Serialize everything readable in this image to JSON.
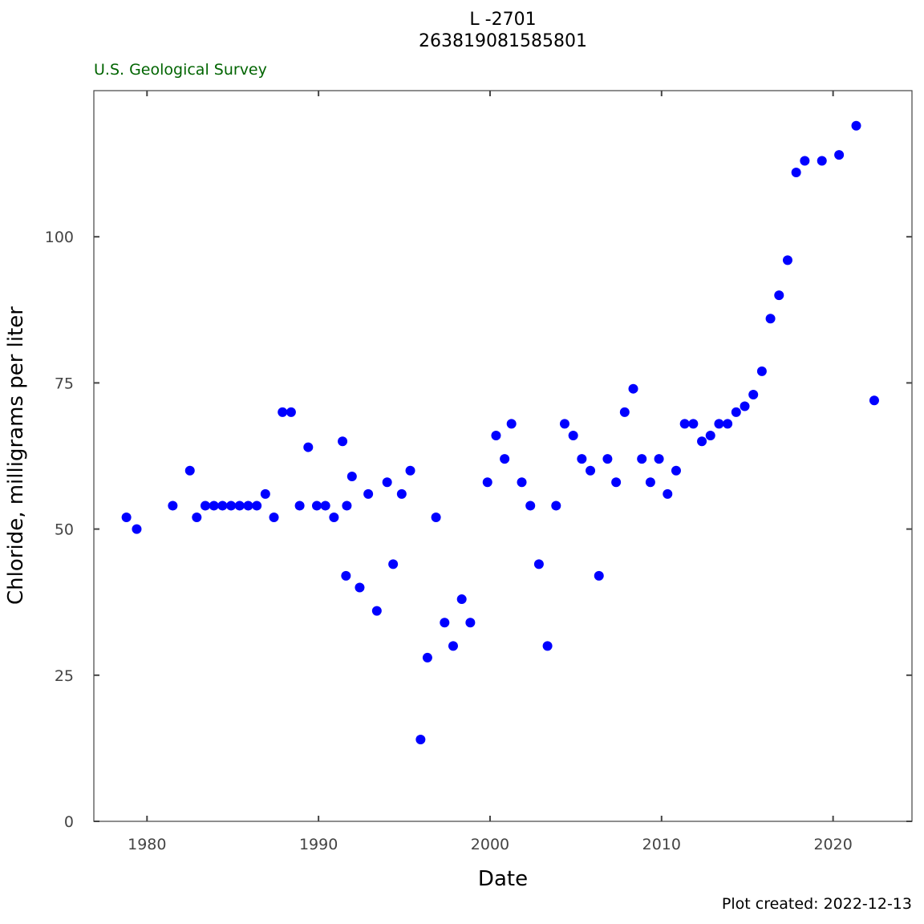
{
  "header": {
    "title_line1": "L -2701",
    "title_line2": "263819081585801",
    "agency": "U.S. Geological Survey",
    "agency_color": "#006400"
  },
  "footer": {
    "plot_created": "Plot created: 2022-12-13"
  },
  "chart_data": {
    "type": "scatter",
    "xlabel": "Date",
    "ylabel": "Chloride, milligrams per liter",
    "xlim": [
      1976.9,
      2024.6
    ],
    "ylim": [
      0,
      125
    ],
    "x_ticks": [
      1980,
      1990,
      2000,
      2010,
      2020
    ],
    "y_ticks": [
      0,
      25,
      50,
      75,
      100
    ],
    "x_tick_labels": [
      "1980",
      "1990",
      "2000",
      "2010",
      "2020"
    ],
    "y_tick_labels": [
      "0",
      "25",
      "50",
      "75",
      "100"
    ],
    "grid": false,
    "marker_color": "#0000ff",
    "series": [
      {
        "x": [
          1978.8,
          1979.4,
          1981.5,
          1982.5,
          1982.9,
          1983.4,
          1983.9,
          1984.4,
          1984.9,
          1985.4,
          1985.9,
          1986.4,
          1986.9,
          1987.4,
          1987.9,
          1988.4,
          1988.9,
          1989.4,
          1989.9,
          1990.4,
          1990.9,
          1991.4,
          1991.6,
          1991.65,
          1991.95,
          1992.4,
          1992.9,
          1993.4,
          1994.0,
          1994.35,
          1994.85,
          1995.35,
          1995.95,
          1996.35,
          1996.85,
          1997.35,
          1997.85,
          1998.35,
          1998.85,
          1999.85,
          2000.35,
          2000.85,
          2001.25,
          2001.85,
          2002.35,
          2002.85,
          2003.35,
          2003.85,
          2004.35,
          2004.85,
          2005.35,
          2005.85,
          2006.35,
          2006.85,
          2007.35,
          2007.85,
          2008.35,
          2008.85,
          2009.35,
          2009.85,
          2010.35,
          2010.85,
          2011.35,
          2011.85,
          2012.35,
          2012.85,
          2013.35,
          2013.85,
          2014.35,
          2014.85,
          2015.35,
          2015.85,
          2016.35,
          2016.85,
          2017.35,
          2017.85,
          2018.35,
          2019.35,
          2020.35,
          2021.35,
          2022.4
        ],
        "y": [
          52,
          50,
          54,
          60,
          52,
          54,
          54,
          54,
          54,
          54,
          54,
          54,
          56,
          52,
          70,
          70,
          54,
          64,
          54,
          54,
          52,
          65,
          42,
          54,
          59,
          40,
          56,
          36,
          58,
          44,
          56,
          60,
          14,
          28,
          52,
          34,
          30,
          38,
          34,
          58,
          66,
          62,
          68,
          58,
          54,
          44,
          30,
          54,
          68,
          66,
          62,
          60,
          42,
          62,
          58,
          70,
          74,
          62,
          58,
          62,
          56,
          60,
          68,
          68,
          65,
          66,
          68,
          68,
          70,
          71,
          73,
          77,
          86,
          90,
          96,
          111,
          113,
          113,
          114,
          119,
          72
        ]
      }
    ]
  }
}
